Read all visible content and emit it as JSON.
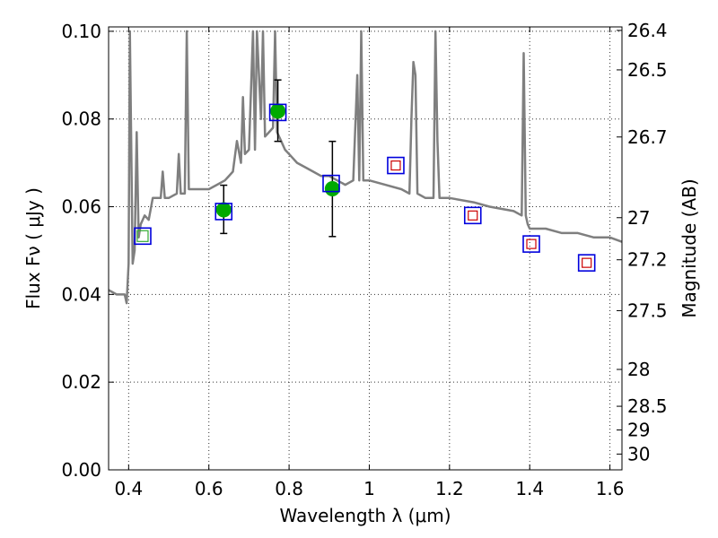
{
  "chart_data": {
    "type": "scatter",
    "title": "",
    "xlabel": "Wavelength  λ (μm)",
    "ylabel": "Flux  Fν  ( μJy )",
    "y2label": "Magnitude (AB)",
    "xlim": [
      0.35,
      1.63
    ],
    "ylim": [
      0.0,
      0.101
    ],
    "grid": true,
    "x_ticks": [
      0.4,
      0.6,
      0.8,
      1.0,
      1.2,
      1.4,
      1.6
    ],
    "x_tick_labels": [
      "0.4",
      "0.6",
      "0.8",
      "1",
      "1.2",
      "1.4",
      "1.6"
    ],
    "y_ticks": [
      0.0,
      0.02,
      0.04,
      0.06,
      0.08,
      0.1
    ],
    "y_tick_labels": [
      "0.00",
      "0.02",
      "0.04",
      "0.06",
      "0.08",
      "0.10"
    ],
    "y2_ticks": [
      {
        "label": "26.4",
        "flux": 0.1002
      },
      {
        "label": "26.5",
        "flux": 0.0912
      },
      {
        "label": "26.7",
        "flux": 0.0759
      },
      {
        "label": "27",
        "flux": 0.0575
      },
      {
        "label": "27.2",
        "flux": 0.0479
      },
      {
        "label": "27.5",
        "flux": 0.0363
      },
      {
        "label": "28",
        "flux": 0.0229
      },
      {
        "label": "28.5",
        "flux": 0.0145
      },
      {
        "label": "29",
        "flux": 0.0091
      },
      {
        "label": "30",
        "flux": 0.0036
      }
    ],
    "colors": {
      "model": "#7f7f7f",
      "observed": "#00aa00",
      "box": "#0000dd",
      "model_band": "#cc0000",
      "model_band_alt": "#33aa33",
      "errorbar": "#000000"
    },
    "series": [
      {
        "kind": "line",
        "style": "model",
        "x": [
          0.35,
          0.37,
          0.39,
          0.395,
          0.4,
          0.403,
          0.41,
          0.415,
          0.42,
          0.425,
          0.43,
          0.44,
          0.45,
          0.46,
          0.47,
          0.48,
          0.485,
          0.49,
          0.5,
          0.52,
          0.525,
          0.53,
          0.54,
          0.545,
          0.55,
          0.57,
          0.6,
          0.62,
          0.64,
          0.66,
          0.67,
          0.68,
          0.685,
          0.69,
          0.7,
          0.71,
          0.715,
          0.72,
          0.73,
          0.735,
          0.74,
          0.75,
          0.76,
          0.765,
          0.77,
          0.78,
          0.79,
          0.8,
          0.82,
          0.84,
          0.86,
          0.88,
          0.9,
          0.92,
          0.94,
          0.96,
          0.97,
          0.975,
          0.98,
          0.985,
          0.99,
          1.0,
          1.04,
          1.08,
          1.1,
          1.105,
          1.11,
          1.115,
          1.12,
          1.14,
          1.16,
          1.165,
          1.17,
          1.175,
          1.18,
          1.2,
          1.26,
          1.3,
          1.36,
          1.38,
          1.385,
          1.39,
          1.395,
          1.4,
          1.44,
          1.48,
          1.52,
          1.56,
          1.6,
          1.63
        ],
        "y": [
          0.041,
          0.04,
          0.04,
          0.038,
          0.047,
          0.1,
          0.047,
          0.05,
          0.077,
          0.053,
          0.056,
          0.058,
          0.057,
          0.062,
          0.062,
          0.062,
          0.068,
          0.062,
          0.062,
          0.063,
          0.072,
          0.063,
          0.063,
          0.1,
          0.064,
          0.064,
          0.064,
          0.065,
          0.066,
          0.068,
          0.075,
          0.07,
          0.085,
          0.072,
          0.073,
          0.1,
          0.073,
          0.1,
          0.08,
          0.1,
          0.076,
          0.077,
          0.078,
          0.1,
          0.077,
          0.075,
          0.073,
          0.072,
          0.07,
          0.069,
          0.068,
          0.067,
          0.067,
          0.066,
          0.065,
          0.066,
          0.09,
          0.066,
          0.1,
          0.066,
          0.066,
          0.066,
          0.065,
          0.064,
          0.063,
          0.08,
          0.093,
          0.09,
          0.063,
          0.062,
          0.062,
          0.1,
          0.075,
          0.062,
          0.062,
          0.062,
          0.061,
          0.06,
          0.059,
          0.058,
          0.095,
          0.058,
          0.056,
          0.055,
          0.055,
          0.054,
          0.054,
          0.053,
          0.053,
          0.052
        ]
      },
      {
        "kind": "points",
        "style": "observed",
        "x": [
          0.637,
          0.772,
          0.908
        ],
        "y": [
          0.0593,
          0.0818,
          0.0641
        ],
        "yerr_low": [
          0.0054,
          0.0069,
          0.0109
        ],
        "yerr_high": [
          0.0056,
          0.0071,
          0.0108
        ]
      },
      {
        "kind": "points",
        "style": "box",
        "x": [
          0.435,
          0.637,
          0.772,
          0.905,
          1.066,
          1.258,
          1.404,
          1.542
        ],
        "y": [
          0.0533,
          0.0589,
          0.0815,
          0.0653,
          0.0694,
          0.058,
          0.0515,
          0.0472
        ]
      },
      {
        "kind": "points",
        "style": "model_band",
        "x": [
          1.066,
          1.258,
          1.404,
          1.542
        ],
        "y": [
          0.0694,
          0.058,
          0.0515,
          0.0472
        ]
      },
      {
        "kind": "points",
        "style": "model_band_alt",
        "x": [
          0.435
        ],
        "y": [
          0.0533
        ]
      }
    ]
  }
}
